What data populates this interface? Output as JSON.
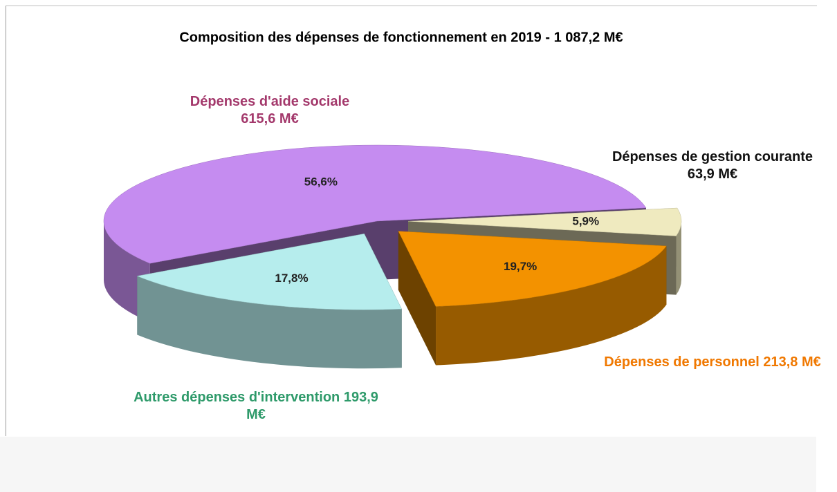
{
  "chart_data": {
    "type": "pie3d",
    "title": "Composition des dépenses de fonctionnement en 2019 - 1 087,2 M€",
    "categories": [
      "Dépenses d'aide sociale",
      "Dépenses de gestion courante",
      "Dépenses de personnel",
      "Autres dépenses d'intervention"
    ],
    "values": [
      56.6,
      5.9,
      19.7,
      17.8
    ],
    "value_labels": [
      "56,6%",
      "5,9%",
      "19,7%",
      "17,8%"
    ],
    "amounts": [
      615.6,
      63.9,
      213.8,
      193.9
    ],
    "amount_labels": [
      "615,6 M€",
      "63,9 M€",
      "213,8 M€",
      "193,9 M€"
    ],
    "colors": [
      "#c58cf0",
      "#efeabf",
      "#f39200",
      "#b6eded"
    ],
    "label_colors": [
      "#a3386b",
      "#111111",
      "#f07800",
      "#2e9a6a"
    ]
  }
}
